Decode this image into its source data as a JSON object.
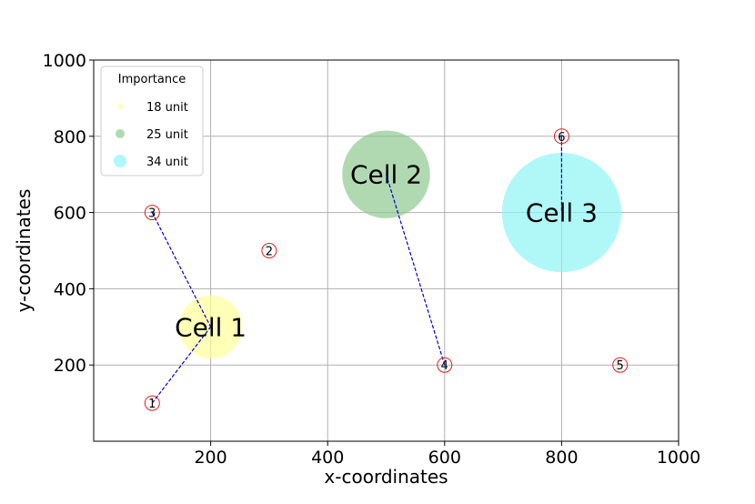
{
  "chart_data": {
    "type": "scatter",
    "title": "",
    "xlabel": "x-coordinates",
    "ylabel": "y-coordinates",
    "xlim": [
      0,
      1000
    ],
    "ylim": [
      0,
      1000
    ],
    "xticks": [
      200,
      400,
      600,
      800,
      1000
    ],
    "yticks": [
      200,
      400,
      600,
      800,
      1000
    ],
    "grid": true,
    "cells": [
      {
        "name": "Cell 1",
        "x": 200,
        "y": 300,
        "importance": 18,
        "color": "#ffff99"
      },
      {
        "name": "Cell 2",
        "x": 500,
        "y": 700,
        "importance": 25,
        "color": "#90c990"
      },
      {
        "name": "Cell 3",
        "x": 800,
        "y": 600,
        "importance": 34,
        "color": "#8ff5f5"
      }
    ],
    "points": [
      {
        "label": "1",
        "x": 100,
        "y": 100
      },
      {
        "label": "2",
        "x": 300,
        "y": 500
      },
      {
        "label": "3",
        "x": 100,
        "y": 600
      },
      {
        "label": "4",
        "x": 600,
        "y": 200
      },
      {
        "label": "5",
        "x": 900,
        "y": 200
      },
      {
        "label": "6",
        "x": 800,
        "y": 800
      }
    ],
    "links": [
      {
        "from_point": "1",
        "to_cell": "Cell 1"
      },
      {
        "from_point": "3",
        "to_cell": "Cell 1"
      },
      {
        "from_point": "4",
        "to_cell": "Cell 2"
      },
      {
        "from_point": "6",
        "to_cell": "Cell 3"
      }
    ],
    "legend": {
      "title": "Importance",
      "placement": "top-left",
      "entries": [
        {
          "label": "18 unit",
          "color": "#ffff99"
        },
        {
          "label": "25 unit",
          "color": "#90c990"
        },
        {
          "label": "34 unit",
          "color": "#8ff5f5"
        }
      ]
    },
    "colors": {
      "point_edge": "#e02020",
      "link": "#0000cc",
      "grid": "#b0b0b0"
    }
  }
}
